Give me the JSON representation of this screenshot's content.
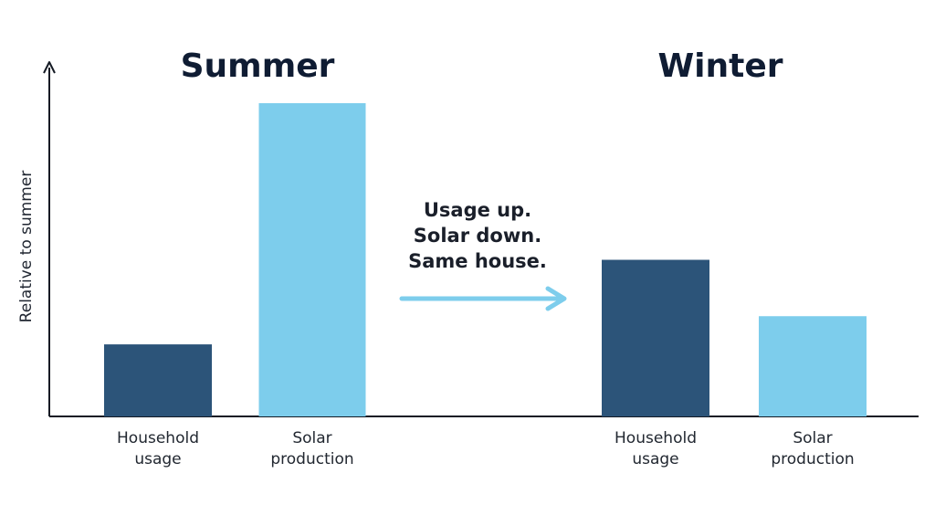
{
  "chart_data": {
    "type": "bar",
    "ylabel": "Relative to summer",
    "xlabel": "",
    "title": "",
    "ylim": [
      0,
      1.1
    ],
    "grid": false,
    "groups": [
      {
        "title": "Summer",
        "bars": [
          {
            "label_lines": [
              "Household",
              "usage"
            ],
            "value": 0.23,
            "color": "#2c5479"
          },
          {
            "label_lines": [
              "Solar",
              "production"
            ],
            "value": 1.0,
            "color": "#7dcdec"
          }
        ]
      },
      {
        "title": "Winter",
        "bars": [
          {
            "label_lines": [
              "Household",
              "usage"
            ],
            "value": 0.5,
            "color": "#2c5479"
          },
          {
            "label_lines": [
              "Solar",
              "production"
            ],
            "value": 0.32,
            "color": "#7dcdec"
          }
        ]
      }
    ],
    "annotation": {
      "lines": [
        "Usage up.",
        "Solar down.",
        "Same house."
      ],
      "arrow_color": "#7dcdec"
    },
    "axis_color": "#141a24"
  }
}
